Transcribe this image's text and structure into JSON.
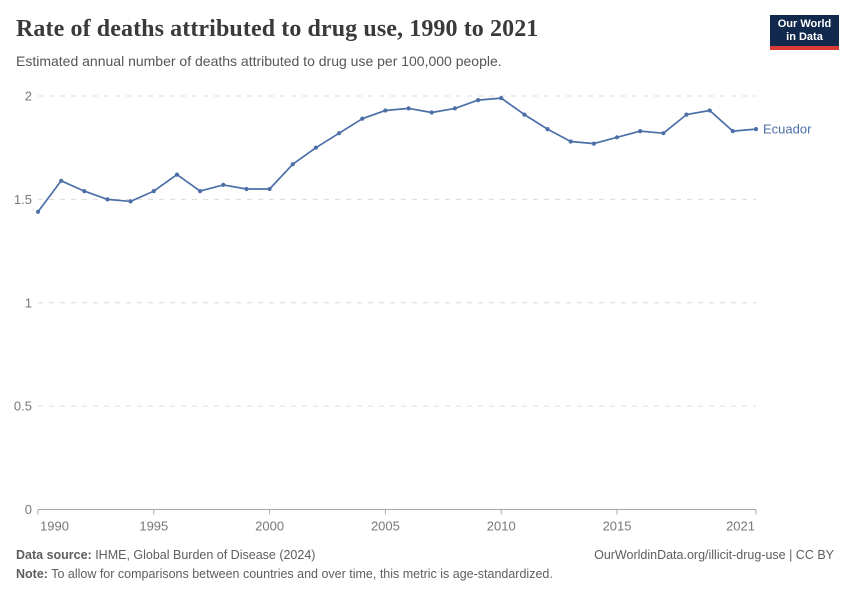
{
  "header": {
    "title": "Rate of deaths attributed to drug use, 1990 to 2021",
    "subtitle": "Estimated annual number of deaths attributed to drug use per 100,000 people.",
    "logo": {
      "line1": "Our World",
      "line2": "in Data"
    }
  },
  "chart_data": {
    "type": "line",
    "title": "Rate of deaths attributed to drug use, 1990 to 2021",
    "xlabel": "",
    "ylabel": "",
    "x": [
      1990,
      1991,
      1992,
      1993,
      1994,
      1995,
      1996,
      1997,
      1998,
      1999,
      2000,
      2001,
      2002,
      2003,
      2004,
      2005,
      2006,
      2007,
      2008,
      2009,
      2010,
      2011,
      2012,
      2013,
      2014,
      2015,
      2016,
      2017,
      2018,
      2019,
      2020,
      2021
    ],
    "series": [
      {
        "name": "Ecuador",
        "color": "#4C6FA8",
        "values": [
          1.44,
          1.59,
          1.54,
          1.5,
          1.49,
          1.54,
          1.62,
          1.54,
          1.57,
          1.55,
          1.55,
          1.67,
          1.75,
          1.82,
          1.89,
          1.93,
          1.94,
          1.92,
          1.94,
          1.98,
          1.99,
          1.91,
          1.84,
          1.78,
          1.77,
          1.8,
          1.83,
          1.82,
          1.91,
          1.93,
          1.83,
          1.84
        ]
      }
    ],
    "xlim": [
      1990,
      2021
    ],
    "ylim": [
      0,
      2
    ],
    "yticks": [
      0,
      0.5,
      1,
      1.5,
      2
    ],
    "ytick_labels": [
      "0",
      "0.5",
      "1",
      "1.5",
      "2"
    ],
    "xticks": [
      1990,
      1995,
      2000,
      2005,
      2010,
      2015,
      2021
    ],
    "grid": "horizontal-dashed",
    "legend_position": "end-of-line-label"
  },
  "colors": {
    "line": "#4C6FA8",
    "gridline": "#dcdcdc",
    "axis": "#a8a8a8",
    "tick_label": "#787878",
    "logo_bg": "#12294E",
    "logo_bar": "#D93A34"
  },
  "footer": {
    "source_label": "Data source:",
    "source_text": " IHME, Global Burden of Disease (2024)",
    "link_text": "OurWorldinData.org/illicit-drug-use | CC BY",
    "note_label": "Note:",
    "note_text": " To allow for comparisons between countries and over time, this metric is age-standardized."
  }
}
